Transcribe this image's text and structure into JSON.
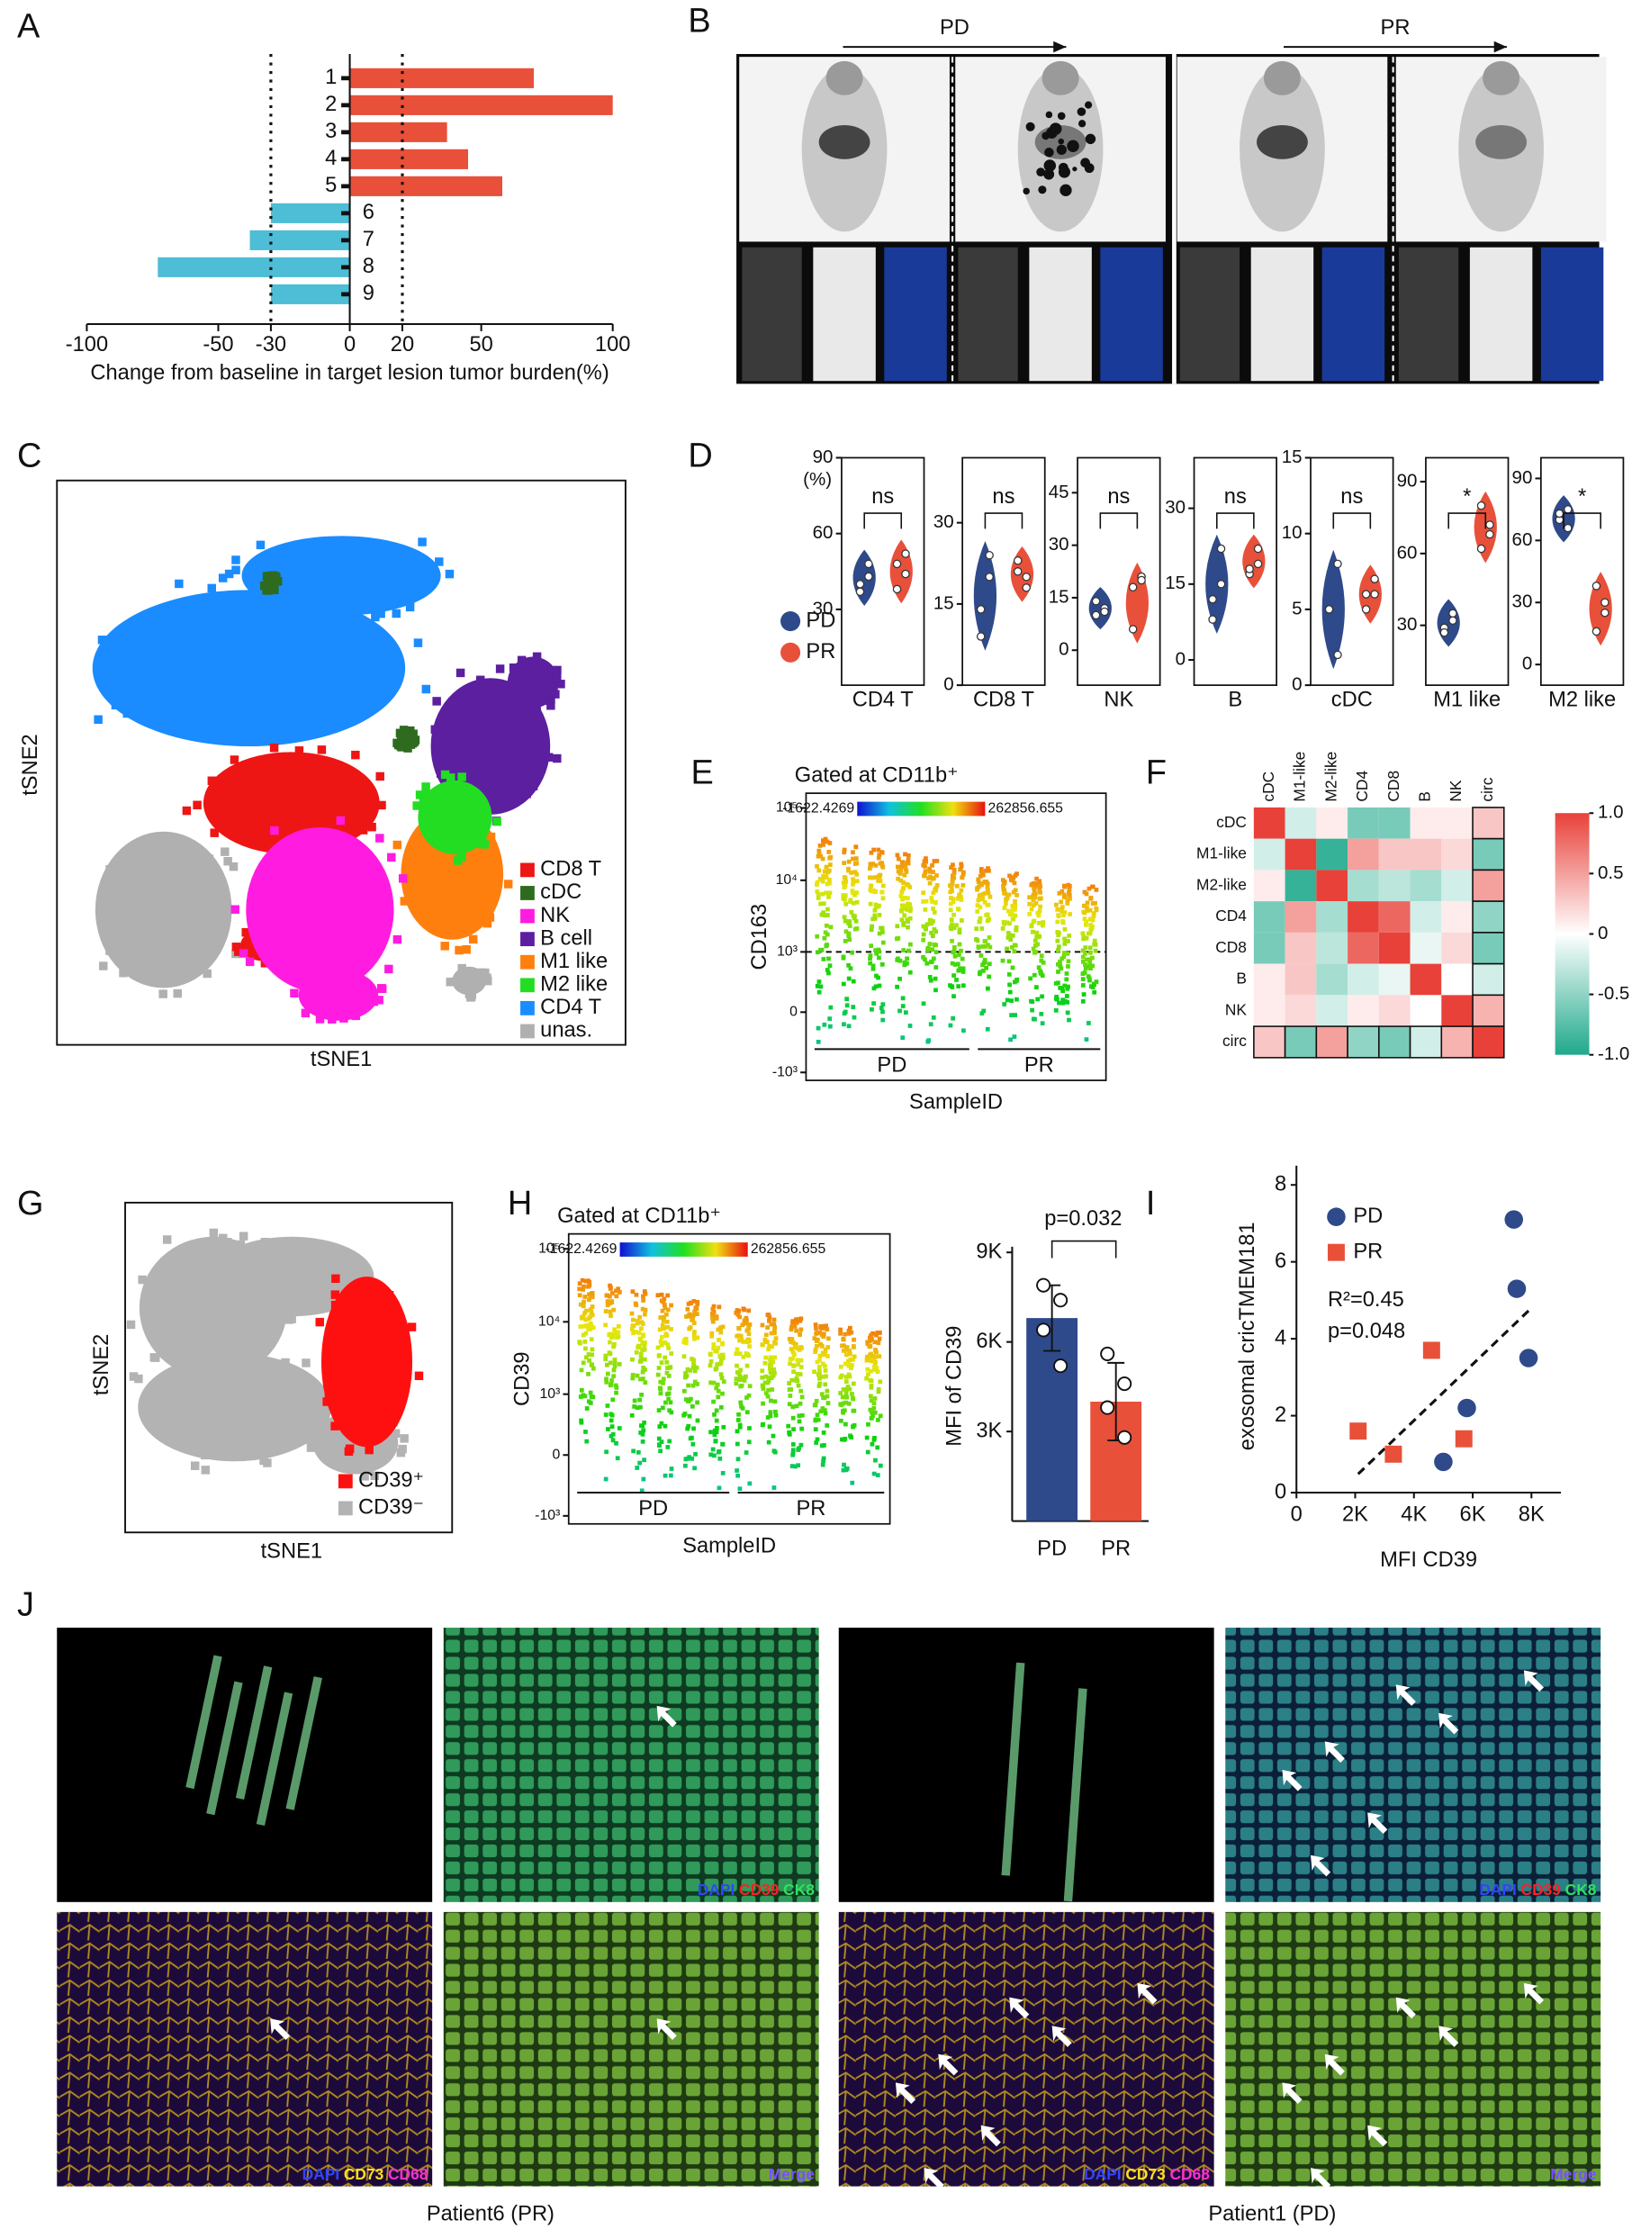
{
  "panel_labels": [
    "A",
    "B",
    "C",
    "D",
    "E",
    "F",
    "G",
    "H",
    "I",
    "J"
  ],
  "chart_data": [
    {
      "type": "hbar",
      "xlabel": "Change from baseline in target lesion tumor burden(%)",
      "categories": [
        "1",
        "2",
        "3",
        "4",
        "5",
        "6",
        "7",
        "8",
        "9"
      ],
      "values": [
        70,
        100,
        37,
        45,
        58,
        -30,
        -38,
        -73,
        -30
      ],
      "positive_color": "#e8503a",
      "negative_color": "#4ebdd6",
      "xlim": [
        -100,
        100
      ],
      "xticks": [
        -100,
        -50,
        -30,
        0,
        20,
        50,
        100
      ],
      "reference_lines": [
        -30,
        20
      ]
    },
    {
      "type": "violin",
      "ylabel": "(%)",
      "series": [
        {
          "name": "PD",
          "color": "#2f4a8a"
        },
        {
          "name": "PR",
          "color": "#e8503a"
        }
      ],
      "panels": [
        {
          "category": "CD4 T",
          "ylim": [
            0,
            90
          ],
          "yticks": [
            30,
            60,
            90
          ],
          "significance": "ns",
          "values": [
            [
              40,
              43,
              37,
              48
            ],
            [
              48,
              44,
              38,
              52
            ]
          ]
        },
        {
          "category": "CD8 T",
          "ylim": [
            0,
            42
          ],
          "yticks": [
            0,
            15,
            30
          ],
          "significance": "ns",
          "values": [
            [
              14,
              20,
              9,
              24
            ],
            [
              21,
              18,
              23,
              20
            ]
          ]
        },
        {
          "category": "NK",
          "ylim": [
            -10,
            55
          ],
          "yticks": [
            0,
            15,
            30,
            45
          ],
          "significance": "ns",
          "values": [
            [
              10,
              12,
              14,
              11
            ],
            [
              18,
              21,
              6,
              20
            ]
          ]
        },
        {
          "category": "B",
          "ylim": [
            -5,
            40
          ],
          "yticks": [
            0,
            15,
            30
          ],
          "significance": "ns",
          "values": [
            [
              12,
              15,
              8,
              22
            ],
            [
              17,
              22,
              18,
              19
            ]
          ]
        },
        {
          "category": "cDC",
          "ylim": [
            0,
            15
          ],
          "yticks": [
            0,
            5,
            10,
            15
          ],
          "significance": "ns",
          "values": [
            [
              5,
              8,
              5,
              2
            ],
            [
              6,
              7,
              5,
              6
            ]
          ]
        },
        {
          "category": "M1 like",
          "ylim": [
            5,
            100
          ],
          "yticks": [
            30,
            60,
            90
          ],
          "significance": "*",
          "values": [
            [
              29,
              32,
              27,
              35
            ],
            [
              80,
              72,
              62,
              68
            ]
          ]
        },
        {
          "category": "M2 like",
          "ylim": [
            -10,
            100
          ],
          "yticks": [
            0,
            30,
            60,
            90
          ],
          "significance": "*",
          "values": [
            [
              70,
              75,
              73,
              66
            ],
            [
              38,
              25,
              16,
              30
            ]
          ]
        }
      ]
    },
    {
      "type": "cluster-map",
      "xlabel": "tSNE1",
      "ylabel": "tSNE2",
      "series": [
        {
          "name": "CD8 T",
          "color": "#ee1515"
        },
        {
          "name": "cDC",
          "color": "#2e6b1e"
        },
        {
          "name": "NK",
          "color": "#ff1ce0"
        },
        {
          "name": "B cell",
          "color": "#5c1fa0"
        },
        {
          "name": "M1 like",
          "color": "#ff7f0e"
        },
        {
          "name": "M2 like",
          "color": "#22dd22"
        },
        {
          "name": "CD4 T",
          "color": "#1a8cff"
        },
        {
          "name": "unas.",
          "color": "#b0b0b0"
        }
      ]
    },
    {
      "type": "flow",
      "title": "Gated at CD11b⁺",
      "colorbar_range": [
        -1622.4269,
        262856.655
      ],
      "ylabel": "CD163",
      "xlabel": "SampleID",
      "groups": [
        "PD",
        "PR"
      ],
      "ylim": [
        -1300,
        160000
      ],
      "reference_line": 1000,
      "yticks": [
        {
          "value": 100000,
          "label": "10⁵"
        },
        {
          "value": 10000,
          "label": "10⁴"
        },
        {
          "value": 1000,
          "label": "10³"
        },
        0,
        {
          "value": -1000,
          "label": "-10³"
        }
      ]
    },
    {
      "type": "heatmap",
      "rows": [
        "cDC",
        "M1-like",
        "M2-like",
        "CD4",
        "CD8",
        "B",
        "NK",
        "circ"
      ],
      "values": [
        [
          1,
          -0.2,
          0.1,
          -0.6,
          -0.6,
          0.1,
          0.1,
          0.3
        ],
        [
          -0.2,
          1,
          -0.9,
          0.5,
          0.3,
          0.3,
          0.2,
          -0.6
        ],
        [
          0.1,
          -0.9,
          1,
          -0.4,
          -0.3,
          -0.4,
          -0.2,
          0.5
        ],
        [
          -0.6,
          0.5,
          -0.4,
          1,
          0.8,
          -0.2,
          0.1,
          -0.5
        ],
        [
          -0.6,
          0.3,
          -0.3,
          0.8,
          1,
          -0.1,
          0.2,
          -0.6
        ],
        [
          0.1,
          0.3,
          -0.4,
          -0.2,
          -0.1,
          1,
          0,
          -0.2
        ],
        [
          0.1,
          0.2,
          -0.2,
          0.1,
          0.2,
          0,
          1,
          0.4
        ],
        [
          0.3,
          -0.6,
          0.5,
          -0.5,
          -0.6,
          -0.2,
          0.4,
          1
        ]
      ],
      "colors": [
        "#1fa98b",
        "#ffffff",
        "#e8413a"
      ],
      "vlim": [
        -1,
        1
      ],
      "colorbar_ticks": [
        {
          "value": 1,
          "label": "1.0"
        },
        0.5,
        0,
        -0.5,
        {
          "value": -1,
          "label": "-1.0"
        }
      ]
    },
    {
      "type": "cluster-map",
      "xlabel": "tSNE1",
      "ylabel": "tSNE2",
      "series": [
        {
          "name": "CD39⁺",
          "color": "#ff1010"
        },
        {
          "name": "CD39⁻",
          "color": "#b3b3b3"
        }
      ]
    },
    {
      "type": "flow",
      "title": "Gated at CD11b⁺",
      "colorbar_range": [
        -1622.4269,
        262856.655
      ],
      "ylabel": "CD39",
      "xlabel": "SampleID",
      "groups": [
        "PD",
        "PR"
      ],
      "ylim": [
        -1300,
        160000
      ],
      "yticks": [
        {
          "value": 100000,
          "label": "10⁵"
        },
        {
          "value": 10000,
          "label": "10⁴"
        },
        {
          "value": 1000,
          "label": "10³"
        },
        0,
        {
          "value": -1000,
          "label": "-10³"
        }
      ]
    },
    {
      "type": "bar",
      "ylabel": "MFI of CD39",
      "annotation": "p=0.032",
      "categories": [
        "PD",
        "PR"
      ],
      "values": [
        6800,
        4000
      ],
      "errors": [
        1100,
        1300
      ],
      "colors": [
        "#2f4a8a",
        "#e8503a"
      ],
      "points": [
        [
          7900,
          7400,
          6400,
          5200
        ],
        [
          5600,
          4600,
          3800,
          2800
        ]
      ],
      "ylim": [
        0,
        9000
      ],
      "yticks": [
        {
          "value": 3000,
          "label": "3K"
        },
        {
          "value": 6000,
          "label": "6K"
        },
        {
          "value": 9000,
          "label": "9K"
        }
      ]
    },
    {
      "type": "scatter",
      "xlabel": "MFI CD39",
      "ylabel": "exosomal cricTMEM181",
      "annotations": [
        "R²=0.45",
        "p=0.048"
      ],
      "series": [
        {
          "name": "PD",
          "color": "#2f4a8a",
          "marker": "circle",
          "x": [
            7400,
            7500,
            7900,
            5800,
            5000
          ],
          "y": [
            7.1,
            5.3,
            3.5,
            2.2,
            0.8
          ]
        },
        {
          "name": "PR",
          "color": "#e8503a",
          "marker": "square",
          "x": [
            2100,
            3300,
            4600,
            5700
          ],
          "y": [
            1.6,
            1.0,
            3.7,
            1.4
          ]
        }
      ],
      "xlim": [
        0,
        9000
      ],
      "ylim": [
        0,
        8.5
      ],
      "xticks": [
        0,
        {
          "value": 2000,
          "label": "2K"
        },
        {
          "value": 4000,
          "label": "4K"
        },
        {
          "value": 6000,
          "label": "6K"
        },
        {
          "value": 8000,
          "label": "8K"
        }
      ],
      "yticks": [
        0,
        2,
        4,
        6,
        8
      ]
    }
  ],
  "images": {
    "B": {
      "arrows": [
        "PD",
        "PR"
      ]
    },
    "J": {
      "stain_sets": [
        [
          {
            "text": "DAPI",
            "color": "#3344ff"
          },
          {
            "text": "CD39",
            "color": "#ff2020"
          },
          {
            "text": "CK8",
            "color": "#30e060"
          }
        ],
        [
          {
            "text": "DAPI",
            "color": "#3344ff"
          },
          {
            "text": "CD73",
            "color": "#ffe020"
          },
          {
            "text": "CD68",
            "color": "#ff30d0"
          }
        ],
        [
          {
            "text": "Merge",
            "color": "#7a50ff"
          }
        ]
      ],
      "captions": [
        "Patient6 (PR)",
        "Patient1 (PD)"
      ]
    }
  }
}
